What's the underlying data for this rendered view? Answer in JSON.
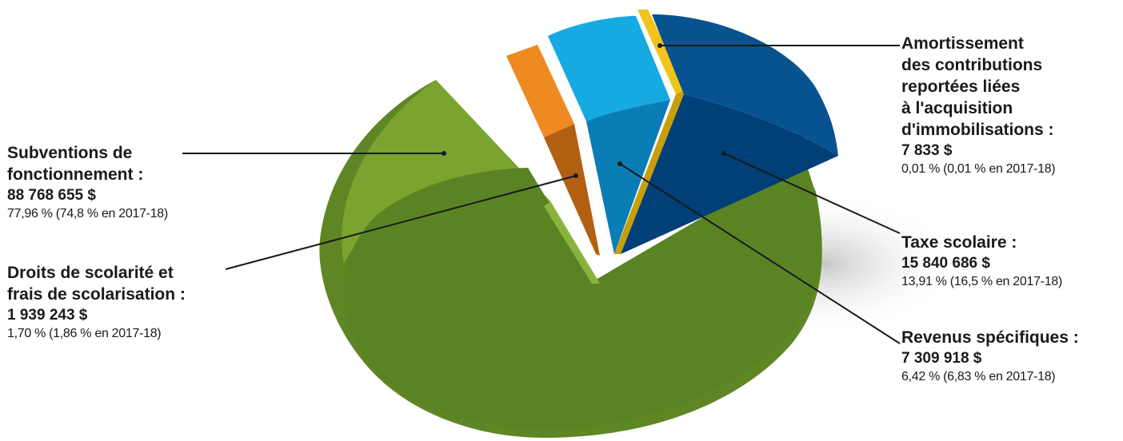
{
  "chart_data": {
    "type": "pie",
    "slices": [
      {
        "key": "subventions",
        "label_lines": [
          "Subventions de",
          "fonctionnement :"
        ],
        "amount": "88 768 655 $",
        "pct_text": "77,96 % (74,8 % en 2017-18)",
        "value": 77.96,
        "previous": 74.8,
        "color": "#5e8625",
        "top_color": "#7aa32f"
      },
      {
        "key": "droits",
        "label_lines": [
          "Droits de scolarité et",
          "frais de scolarisation :"
        ],
        "amount": "1 939 243 $",
        "pct_text": "1,70 % (1,86 % en 2017-18)",
        "value": 1.7,
        "previous": 1.86,
        "color": "#b35f12",
        "top_color": "#ef8a22"
      },
      {
        "key": "revenus",
        "label_lines": [
          "Revenus spécifiques :"
        ],
        "amount": "7 309 918 $",
        "pct_text": "6,42 % (6,83 % en 2017-18)",
        "value": 6.42,
        "previous": 6.83,
        "color": "#0b7db5",
        "top_color": "#16a9e2"
      },
      {
        "key": "amortissement",
        "label_lines": [
          "Amortissement",
          "des contributions",
          "reportées liées",
          "à l'acquisition",
          "d'immobilisations :"
        ],
        "amount": "7 833 $",
        "pct_text": "0,01 % (0,01 % en 2017-18)",
        "value": 0.01,
        "previous": 0.01,
        "color": "#c89f08",
        "top_color": "#f2c31a"
      },
      {
        "key": "taxe",
        "label_lines": [
          "Taxe scolaire :"
        ],
        "amount": "15 840 686 $",
        "pct_text": "13,91 % (16,5 % en 2017-18)",
        "value": 13.91,
        "previous": 16.5,
        "color": "#003f77",
        "top_color": "#08538f"
      }
    ]
  }
}
